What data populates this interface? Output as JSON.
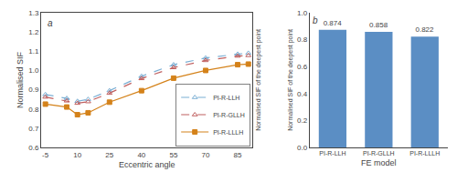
{
  "chart_data": [
    {
      "type": "line",
      "x": [
        -5,
        5,
        10,
        15,
        25,
        40,
        55,
        70,
        85,
        90
      ],
      "series": [
        {
          "name": "PI-R-LLH",
          "color": "#7bafd4",
          "marker": "triangle-up-open",
          "line_style": "dash",
          "values": [
            0.875,
            0.855,
            0.84,
            0.85,
            0.895,
            0.97,
            1.03,
            1.065,
            1.085,
            1.09
          ]
        },
        {
          "name": "PI-R-GLLH",
          "color": "#c06060",
          "marker": "triangle-up-open",
          "line_style": "dash",
          "values": [
            0.862,
            0.842,
            0.83,
            0.838,
            0.882,
            0.958,
            1.015,
            1.052,
            1.075,
            1.078
          ]
        },
        {
          "name": "PI-R-LLLH",
          "color": "#d4821a",
          "marker": "square",
          "line_style": "solid",
          "values": [
            0.825,
            0.81,
            0.77,
            0.78,
            0.835,
            0.895,
            0.96,
            1.0,
            1.03,
            1.033
          ]
        }
      ],
      "xlabel": "Eccentric angle",
      "ylabel": "Normalised SIF",
      "y2label": "Normalised SIF of the deepest point",
      "xlim": [
        -7,
        92
      ],
      "xticks": [
        -5,
        10,
        25,
        40,
        55,
        70,
        85
      ],
      "ylim": [
        0.6,
        1.3
      ],
      "yticks": [
        0.6,
        0.7,
        0.8,
        0.9,
        {
          "value": 1,
          "label": "1.0"
        },
        1.1,
        1.2,
        1.3
      ],
      "y2lim": [
        0.6,
        1.3
      ],
      "y2ticks": [],
      "legend": "lower right",
      "grid": false,
      "annotations": [
        "a"
      ]
    },
    {
      "type": "bar",
      "categories": [
        "PI-R-LLH",
        "PI-R-GLLH",
        "PI-R-LLLH"
      ],
      "values": [
        0.874,
        0.858,
        0.822
      ],
      "color": "#5b8ec4",
      "xlabel": "FE model",
      "ylabel": "Normalised SIF of the deepest point",
      "ylim": [
        0,
        1
      ],
      "yticks": [
        {
          "value": 0,
          "label": "0.0"
        },
        0.2,
        0.4,
        0.6,
        0.8,
        {
          "value": 1,
          "label": "1.0"
        }
      ],
      "data_labels": true,
      "grid": false,
      "annotations": [
        "b"
      ]
    }
  ]
}
